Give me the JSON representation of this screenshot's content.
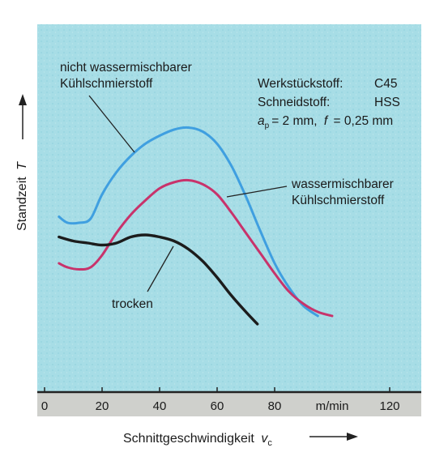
{
  "chart_data": {
    "type": "line",
    "xlabel": "Schnittgeschwindigkeit",
    "xlabel_symbol": "v",
    "xlabel_sub": "c",
    "ylabel": "Standzeit",
    "ylabel_symbol": "T",
    "x_unit": "m/min",
    "xticks": [
      {
        "value": 0,
        "label": "0"
      },
      {
        "value": 20,
        "label": "20"
      },
      {
        "value": 40,
        "label": "40"
      },
      {
        "value": 60,
        "label": "60"
      },
      {
        "value": 80,
        "label": "80"
      },
      {
        "value": 120,
        "label": "120"
      }
    ],
    "xlim": [
      0,
      132
    ],
    "ylim": [
      0,
      100
    ],
    "info": {
      "werkstueck_label": "Werkstückstoff:",
      "werkstueck_value": "C45",
      "schneid_label": "Schneidstoff:",
      "schneid_value": "HSS",
      "param_ap_symbol": "a",
      "param_ap_sub": "p",
      "param_ap_rest": "= 2 mm,",
      "param_f_symbol": "f",
      "param_f_rest": "= 0,25 mm"
    },
    "series": [
      {
        "name": "nicht wassermischbarer Kühlschmierstoff",
        "label_lines": [
          "nicht wassermischbarer",
          "Kühlschmierstoff"
        ],
        "color": "#3f9fe0",
        "points": [
          [
            5,
            55
          ],
          [
            8,
            52
          ],
          [
            12,
            52
          ],
          [
            16,
            54
          ],
          [
            20,
            66
          ],
          [
            25,
            77
          ],
          [
            30,
            85
          ],
          [
            35,
            91
          ],
          [
            40,
            95
          ],
          [
            45,
            98
          ],
          [
            50,
            99
          ],
          [
            55,
            97
          ],
          [
            60,
            91
          ],
          [
            65,
            80
          ],
          [
            70,
            65
          ],
          [
            75,
            48
          ],
          [
            80,
            32
          ],
          [
            85,
            20
          ],
          [
            90,
            11
          ],
          [
            95,
            6
          ]
        ]
      },
      {
        "name": "wassermischbarer Kühlschmierstoff",
        "label_lines": [
          "wassermischbarer",
          "Kühlschmierstoff"
        ],
        "color": "#c8336b",
        "points": [
          [
            5,
            32
          ],
          [
            8,
            30
          ],
          [
            12,
            29
          ],
          [
            16,
            30
          ],
          [
            20,
            36
          ],
          [
            25,
            47
          ],
          [
            30,
            56
          ],
          [
            35,
            63
          ],
          [
            40,
            69
          ],
          [
            45,
            72
          ],
          [
            50,
            73
          ],
          [
            55,
            71
          ],
          [
            60,
            66
          ],
          [
            65,
            57
          ],
          [
            70,
            47
          ],
          [
            75,
            37
          ],
          [
            80,
            27
          ],
          [
            85,
            18
          ],
          [
            90,
            12
          ],
          [
            95,
            8
          ],
          [
            100,
            6
          ]
        ]
      },
      {
        "name": "trocken",
        "label_lines": [
          "trocken"
        ],
        "color": "#1c1c1c",
        "points": [
          [
            5,
            45
          ],
          [
            10,
            43
          ],
          [
            15,
            42
          ],
          [
            20,
            41
          ],
          [
            25,
            42
          ],
          [
            30,
            45
          ],
          [
            35,
            46
          ],
          [
            40,
            45
          ],
          [
            45,
            43
          ],
          [
            50,
            39
          ],
          [
            55,
            33
          ],
          [
            60,
            25
          ],
          [
            65,
            16
          ],
          [
            70,
            8
          ],
          [
            74,
            2
          ]
        ]
      }
    ]
  }
}
